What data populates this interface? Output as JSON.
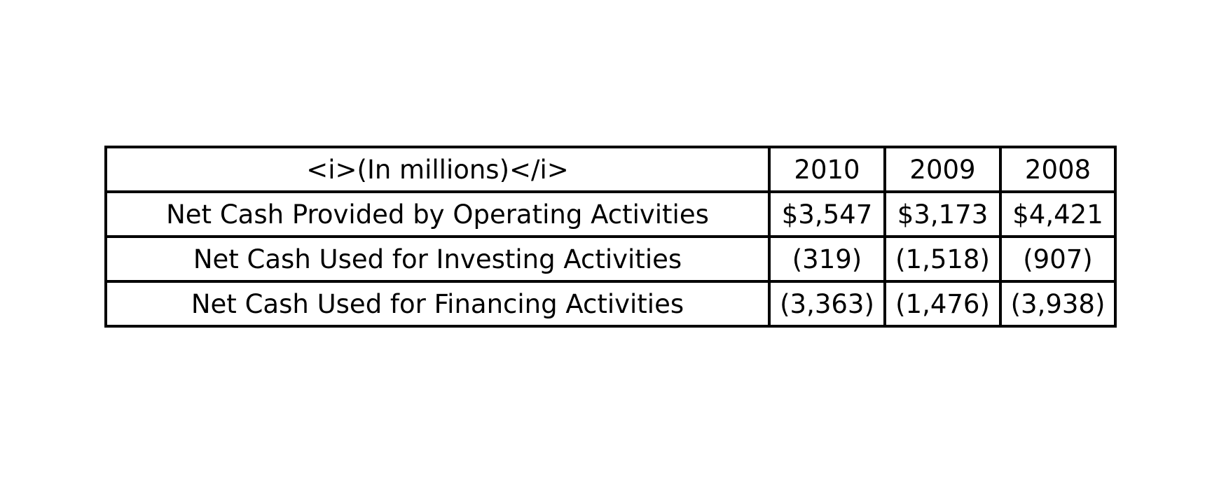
{
  "chart_data": {
    "type": "table",
    "columns": [
      "<i>(In millions)</i>",
      "2010",
      "2009",
      "2008"
    ],
    "rows": [
      [
        "Net Cash Provided by Operating Activities",
        "$3,547",
        "$3,173",
        "$4,421"
      ],
      [
        "Net Cash Used for Investing Activities",
        "(319)",
        "(1,518)",
        "(907)"
      ],
      [
        "Net Cash Used for Financing Activities",
        "(3,363)",
        "(1,476)",
        "(3,938)"
      ]
    ]
  }
}
